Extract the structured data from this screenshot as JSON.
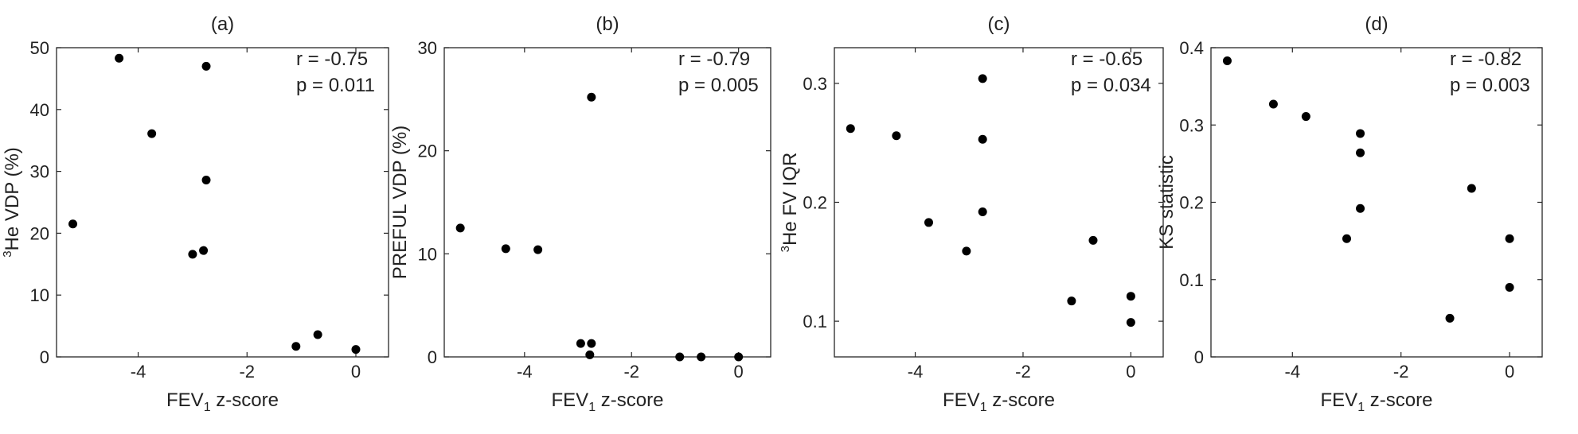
{
  "chart_data": [
    {
      "type": "scatter",
      "title": "(a)",
      "xlabel": "FEV",
      "xlabel_sub": "1",
      "xlabel_rest": " z-score",
      "ylabel_sup": "3",
      "ylabel": "He VDP (%)",
      "xlim": [
        -5.5,
        0.6
      ],
      "ylim": [
        0,
        50
      ],
      "xticks": [
        -4,
        -2,
        0
      ],
      "xtick_labels": [
        "-4",
        "-2",
        "0"
      ],
      "yticks": [
        0,
        10,
        20,
        30,
        40,
        50
      ],
      "ytick_labels": [
        "0",
        "10",
        "20",
        "30",
        "40",
        "50"
      ],
      "annotations": [
        "r = -0.75",
        "p = 0.011"
      ],
      "points": [
        {
          "x": -5.2,
          "y": 21.5
        },
        {
          "x": -4.35,
          "y": 48.3
        },
        {
          "x": -3.75,
          "y": 36.1
        },
        {
          "x": -3.0,
          "y": 16.6
        },
        {
          "x": -2.8,
          "y": 17.2
        },
        {
          "x": -2.75,
          "y": 47.0
        },
        {
          "x": -2.75,
          "y": 28.6
        },
        {
          "x": -1.1,
          "y": 1.7
        },
        {
          "x": -0.7,
          "y": 3.6
        },
        {
          "x": 0.0,
          "y": 1.2
        }
      ]
    },
    {
      "type": "scatter",
      "title": "(b)",
      "xlabel": "FEV",
      "xlabel_sub": "1",
      "xlabel_rest": " z-score",
      "ylabel_sup": "",
      "ylabel": "PREFUL VDP (%)",
      "xlim": [
        -5.5,
        0.6
      ],
      "ylim": [
        0,
        30
      ],
      "xticks": [
        -4,
        -2,
        0
      ],
      "xtick_labels": [
        "-4",
        "-2",
        "0"
      ],
      "yticks": [
        0,
        10,
        20,
        30
      ],
      "ytick_labels": [
        "0",
        "10",
        "20",
        "30"
      ],
      "annotations": [
        "r = -0.79",
        "p = 0.005"
      ],
      "points": [
        {
          "x": -5.2,
          "y": 12.5
        },
        {
          "x": -4.35,
          "y": 10.5
        },
        {
          "x": -3.75,
          "y": 10.4
        },
        {
          "x": -2.95,
          "y": 1.3
        },
        {
          "x": -2.75,
          "y": 1.3
        },
        {
          "x": -2.78,
          "y": 0.2
        },
        {
          "x": -2.75,
          "y": 25.2
        },
        {
          "x": -1.1,
          "y": 0.0
        },
        {
          "x": -0.7,
          "y": 0.0
        },
        {
          "x": 0.0,
          "y": 0.0
        }
      ]
    },
    {
      "type": "scatter",
      "title": "(c)",
      "xlabel": "FEV",
      "xlabel_sub": "1",
      "xlabel_rest": " z-score",
      "ylabel_sup": "3",
      "ylabel": "He FV IQR",
      "xlim": [
        -5.5,
        0.6
      ],
      "ylim": [
        0.07,
        0.33
      ],
      "xticks": [
        -4,
        -2,
        0
      ],
      "xtick_labels": [
        "-4",
        "-2",
        "0"
      ],
      "yticks": [
        0.1,
        0.2,
        0.3
      ],
      "ytick_labels": [
        "0.1",
        "0.2",
        "0.3"
      ],
      "annotations": [
        "r = -0.65",
        "p = 0.034"
      ],
      "points": [
        {
          "x": -5.2,
          "y": 0.262
        },
        {
          "x": -4.35,
          "y": 0.256
        },
        {
          "x": -3.75,
          "y": 0.183
        },
        {
          "x": -3.05,
          "y": 0.159
        },
        {
          "x": -2.75,
          "y": 0.304
        },
        {
          "x": -2.75,
          "y": 0.253
        },
        {
          "x": -2.75,
          "y": 0.192
        },
        {
          "x": -1.1,
          "y": 0.117
        },
        {
          "x": -0.7,
          "y": 0.168
        },
        {
          "x": 0.0,
          "y": 0.121
        },
        {
          "x": 0.0,
          "y": 0.099
        }
      ]
    },
    {
      "type": "scatter",
      "title": "(d)",
      "xlabel": "FEV",
      "xlabel_sub": "1",
      "xlabel_rest": " z-score",
      "ylabel_sup": "",
      "ylabel": "KS statistic",
      "xlim": [
        -5.5,
        0.6
      ],
      "ylim": [
        0,
        0.4
      ],
      "xticks": [
        -4,
        -2,
        0
      ],
      "xtick_labels": [
        "-4",
        "-2",
        "0"
      ],
      "yticks": [
        0,
        0.1,
        0.2,
        0.3,
        0.4
      ],
      "ytick_labels": [
        "0",
        "0.1",
        "0.2",
        "0.3",
        "0.4"
      ],
      "annotations": [
        "r = -0.82",
        "p = 0.003"
      ],
      "points": [
        {
          "x": -5.2,
          "y": 0.383
        },
        {
          "x": -4.35,
          "y": 0.327
        },
        {
          "x": -3.75,
          "y": 0.311
        },
        {
          "x": -3.0,
          "y": 0.153
        },
        {
          "x": -2.75,
          "y": 0.289
        },
        {
          "x": -2.75,
          "y": 0.264
        },
        {
          "x": -2.75,
          "y": 0.192
        },
        {
          "x": -1.1,
          "y": 0.05
        },
        {
          "x": -0.7,
          "y": 0.218
        },
        {
          "x": 0.0,
          "y": 0.153
        },
        {
          "x": 0.0,
          "y": 0.09
        }
      ]
    }
  ]
}
